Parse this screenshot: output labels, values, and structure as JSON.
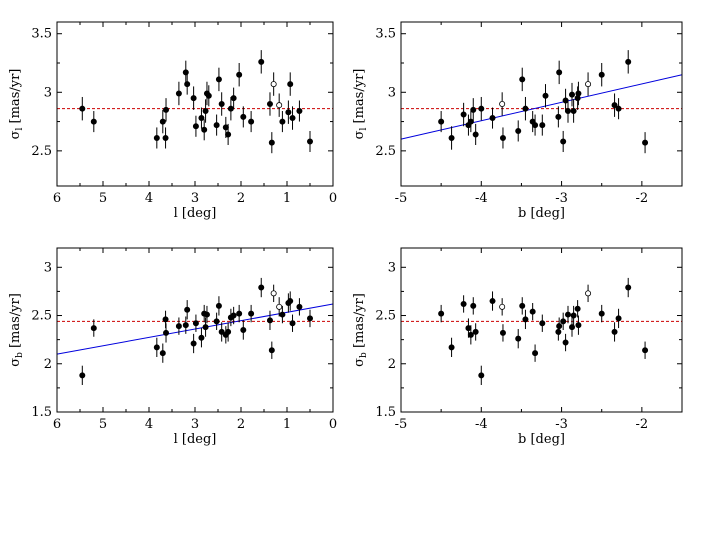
{
  "figure": {
    "colors": {
      "mean_line": "#cc0000",
      "fit_line": "#0000dd",
      "points": "#000000"
    }
  },
  "chart_data": [
    {
      "type": "scatter",
      "panel": "top-left",
      "xlabel": "l [deg]",
      "ylabel_main": "σ",
      "ylabel_sub": "l",
      "ylabel_units": "[mas/yr]",
      "xlim": [
        6,
        0
      ],
      "ylim": [
        2.2,
        3.6
      ],
      "xticks": [
        6,
        5,
        4,
        3,
        2,
        1,
        0
      ],
      "yticks": [
        2.5,
        3,
        3.5
      ],
      "xtick_labels": [
        "6",
        "5",
        "4",
        "3",
        "2",
        "1",
        "0"
      ],
      "ytick_labels": [
        "2.5",
        "3",
        "3.5"
      ],
      "mean_line": 2.86,
      "fit": null,
      "points": [
        {
          "x": 5.45,
          "y": 2.86,
          "err": 0.1
        },
        {
          "x": 5.2,
          "y": 2.75,
          "err": 0.09
        },
        {
          "x": 3.83,
          "y": 2.61,
          "err": 0.09
        },
        {
          "x": 3.7,
          "y": 2.75,
          "err": 0.1
        },
        {
          "x": 3.64,
          "y": 2.61,
          "err": 0.09
        },
        {
          "x": 3.63,
          "y": 2.85,
          "err": 0.1
        },
        {
          "x": 3.35,
          "y": 2.99,
          "err": 0.1
        },
        {
          "x": 3.2,
          "y": 3.17,
          "err": 0.1
        },
        {
          "x": 3.17,
          "y": 3.07,
          "err": 0.09
        },
        {
          "x": 3.03,
          "y": 2.95,
          "err": 0.1
        },
        {
          "x": 2.98,
          "y": 2.71,
          "err": 0.09
        },
        {
          "x": 2.86,
          "y": 2.78,
          "err": 0.09
        },
        {
          "x": 2.8,
          "y": 2.68,
          "err": 0.09
        },
        {
          "x": 2.77,
          "y": 2.84,
          "err": 0.1
        },
        {
          "x": 2.74,
          "y": 2.99,
          "err": 0.1
        },
        {
          "x": 2.7,
          "y": 2.97,
          "err": 0.09
        },
        {
          "x": 2.53,
          "y": 2.72,
          "err": 0.09
        },
        {
          "x": 2.48,
          "y": 3.11,
          "err": 0.1
        },
        {
          "x": 2.42,
          "y": 2.9,
          "err": 0.1
        },
        {
          "x": 2.33,
          "y": 2.7,
          "err": 0.09
        },
        {
          "x": 2.28,
          "y": 2.64,
          "err": 0.09
        },
        {
          "x": 2.22,
          "y": 2.86,
          "err": 0.1
        },
        {
          "x": 2.16,
          "y": 2.95,
          "err": 0.09
        },
        {
          "x": 2.04,
          "y": 3.15,
          "err": 0.1
        },
        {
          "x": 1.95,
          "y": 2.79,
          "err": 0.09
        },
        {
          "x": 1.78,
          "y": 2.75,
          "err": 0.09
        },
        {
          "x": 1.56,
          "y": 3.26,
          "err": 0.1
        },
        {
          "x": 1.37,
          "y": 2.9,
          "err": 0.1
        },
        {
          "x": 1.33,
          "y": 2.57,
          "err": 0.09
        },
        {
          "x": 1.29,
          "y": 3.07,
          "err": 0.1,
          "open": true
        },
        {
          "x": 1.17,
          "y": 2.89,
          "err": 0.1,
          "open": true
        },
        {
          "x": 1.1,
          "y": 2.75,
          "err": 0.09
        },
        {
          "x": 0.97,
          "y": 2.83,
          "err": 0.1
        },
        {
          "x": 0.93,
          "y": 3.07,
          "err": 0.1
        },
        {
          "x": 0.88,
          "y": 2.78,
          "err": 0.1
        },
        {
          "x": 0.73,
          "y": 2.84,
          "err": 0.09
        },
        {
          "x": 0.5,
          "y": 2.58,
          "err": 0.09
        }
      ]
    },
    {
      "type": "scatter",
      "panel": "top-right",
      "xlabel": "b [deg]",
      "ylabel_main": "σ",
      "ylabel_sub": "l",
      "ylabel_units": "[mas/yr]",
      "xlim": [
        -5,
        -1.5
      ],
      "ylim": [
        2.2,
        3.6
      ],
      "xticks": [
        -5,
        -4,
        -3,
        -2
      ],
      "yticks": [
        2.5,
        3,
        3.5
      ],
      "xtick_labels": [
        "-5",
        "-4",
        "-3",
        "-2"
      ],
      "ytick_labels": [
        "2.5",
        "3",
        "3.5"
      ],
      "mean_line": 2.86,
      "fit": {
        "x0": -5,
        "y0": 2.6,
        "x1": -1.5,
        "y1": 3.15
      },
      "points": [
        {
          "x": -4.5,
          "y": 2.75,
          "err": 0.09
        },
        {
          "x": -4.37,
          "y": 2.61,
          "err": 0.1
        },
        {
          "x": -4.22,
          "y": 2.81,
          "err": 0.1
        },
        {
          "x": -4.16,
          "y": 2.72,
          "err": 0.09
        },
        {
          "x": -4.13,
          "y": 2.75,
          "err": 0.09
        },
        {
          "x": -4.1,
          "y": 2.85,
          "err": 0.1
        },
        {
          "x": -4.07,
          "y": 2.64,
          "err": 0.09
        },
        {
          "x": -4.0,
          "y": 2.86,
          "err": 0.1
        },
        {
          "x": -3.86,
          "y": 2.78,
          "err": 0.09
        },
        {
          "x": -3.74,
          "y": 2.9,
          "err": 0.1,
          "open": true
        },
        {
          "x": -3.73,
          "y": 2.61,
          "err": 0.09
        },
        {
          "x": -3.54,
          "y": 2.67,
          "err": 0.09
        },
        {
          "x": -3.49,
          "y": 3.11,
          "err": 0.1
        },
        {
          "x": -3.45,
          "y": 2.86,
          "err": 0.1
        },
        {
          "x": -3.36,
          "y": 2.75,
          "err": 0.09
        },
        {
          "x": -3.33,
          "y": 2.72,
          "err": 0.09
        },
        {
          "x": -3.24,
          "y": 2.72,
          "err": 0.09
        },
        {
          "x": -3.2,
          "y": 2.97,
          "err": 0.1
        },
        {
          "x": -3.03,
          "y": 3.17,
          "err": 0.1
        },
        {
          "x": -3.04,
          "y": 2.79,
          "err": 0.09
        },
        {
          "x": -2.98,
          "y": 2.58,
          "err": 0.09
        },
        {
          "x": -2.95,
          "y": 2.93,
          "err": 0.1
        },
        {
          "x": -2.92,
          "y": 2.84,
          "err": 0.1
        },
        {
          "x": -2.87,
          "y": 2.98,
          "err": 0.1
        },
        {
          "x": -2.85,
          "y": 2.84,
          "err": 0.1
        },
        {
          "x": -2.8,
          "y": 2.95,
          "err": 0.1
        },
        {
          "x": -2.79,
          "y": 2.99,
          "err": 0.1
        },
        {
          "x": -2.67,
          "y": 3.07,
          "err": 0.1,
          "open": true
        },
        {
          "x": -2.5,
          "y": 3.15,
          "err": 0.1
        },
        {
          "x": -2.34,
          "y": 2.89,
          "err": 0.1
        },
        {
          "x": -2.29,
          "y": 2.86,
          "err": 0.09
        },
        {
          "x": -2.17,
          "y": 3.26,
          "err": 0.1
        },
        {
          "x": -1.96,
          "y": 2.57,
          "err": 0.09
        }
      ]
    },
    {
      "type": "scatter",
      "panel": "bottom-left",
      "xlabel": "l [deg]",
      "ylabel_main": "σ",
      "ylabel_sub": "b",
      "ylabel_units": "[mas/yr]",
      "xlim": [
        6,
        0
      ],
      "ylim": [
        1.5,
        3.2
      ],
      "xticks": [
        6,
        5,
        4,
        3,
        2,
        1,
        0
      ],
      "yticks": [
        1.5,
        2,
        2.5,
        3
      ],
      "xtick_labels": [
        "6",
        "5",
        "4",
        "3",
        "2",
        "1",
        "0"
      ],
      "ytick_labels": [
        "1.5",
        "2",
        "2.5",
        "3"
      ],
      "mean_line": 2.44,
      "fit": {
        "x0": 6,
        "y0": 2.1,
        "x1": 0,
        "y1": 2.62
      },
      "points": [
        {
          "x": 5.45,
          "y": 1.88,
          "err": 0.1
        },
        {
          "x": 5.2,
          "y": 2.37,
          "err": 0.09
        },
        {
          "x": 3.83,
          "y": 2.17,
          "err": 0.1
        },
        {
          "x": 3.7,
          "y": 2.11,
          "err": 0.1
        },
        {
          "x": 3.64,
          "y": 2.46,
          "err": 0.09
        },
        {
          "x": 3.63,
          "y": 2.32,
          "err": 0.1
        },
        {
          "x": 3.35,
          "y": 2.39,
          "err": 0.09
        },
        {
          "x": 3.2,
          "y": 2.4,
          "err": 0.09
        },
        {
          "x": 3.17,
          "y": 2.56,
          "err": 0.1
        },
        {
          "x": 3.03,
          "y": 2.21,
          "err": 0.1
        },
        {
          "x": 2.98,
          "y": 2.42,
          "err": 0.09
        },
        {
          "x": 2.86,
          "y": 2.27,
          "err": 0.1
        },
        {
          "x": 2.8,
          "y": 2.52,
          "err": 0.09
        },
        {
          "x": 2.77,
          "y": 2.38,
          "err": 0.1
        },
        {
          "x": 2.74,
          "y": 2.51,
          "err": 0.09
        },
        {
          "x": 2.53,
          "y": 2.44,
          "err": 0.09
        },
        {
          "x": 2.48,
          "y": 2.6,
          "err": 0.1
        },
        {
          "x": 2.42,
          "y": 2.33,
          "err": 0.1
        },
        {
          "x": 2.33,
          "y": 2.3,
          "err": 0.09
        },
        {
          "x": 2.28,
          "y": 2.33,
          "err": 0.1
        },
        {
          "x": 2.22,
          "y": 2.48,
          "err": 0.09
        },
        {
          "x": 2.16,
          "y": 2.5,
          "err": 0.09
        },
        {
          "x": 2.04,
          "y": 2.52,
          "err": 0.09
        },
        {
          "x": 1.95,
          "y": 2.35,
          "err": 0.1
        },
        {
          "x": 1.78,
          "y": 2.52,
          "err": 0.09
        },
        {
          "x": 1.56,
          "y": 2.79,
          "err": 0.1
        },
        {
          "x": 1.37,
          "y": 2.45,
          "err": 0.1
        },
        {
          "x": 1.33,
          "y": 2.14,
          "err": 0.09
        },
        {
          "x": 1.29,
          "y": 2.73,
          "err": 0.09,
          "open": true
        },
        {
          "x": 1.17,
          "y": 2.59,
          "err": 0.1,
          "open": true
        },
        {
          "x": 1.1,
          "y": 2.51,
          "err": 0.09
        },
        {
          "x": 0.97,
          "y": 2.63,
          "err": 0.1
        },
        {
          "x": 0.93,
          "y": 2.65,
          "err": 0.1
        },
        {
          "x": 0.88,
          "y": 2.42,
          "err": 0.09
        },
        {
          "x": 0.73,
          "y": 2.59,
          "err": 0.09
        },
        {
          "x": 0.5,
          "y": 2.47,
          "err": 0.09
        }
      ]
    },
    {
      "type": "scatter",
      "panel": "bottom-right",
      "xlabel": "b [deg]",
      "ylabel_main": "σ",
      "ylabel_sub": "b",
      "ylabel_units": "[mas/yr]",
      "xlim": [
        -5,
        -1.5
      ],
      "ylim": [
        1.5,
        3.2
      ],
      "xticks": [
        -5,
        -4,
        -3,
        -2
      ],
      "yticks": [
        1.5,
        2,
        2.5,
        3
      ],
      "xtick_labels": [
        "-5",
        "-4",
        "-3",
        "-2"
      ],
      "ytick_labels": [
        "1.5",
        "2",
        "2.5",
        "3"
      ],
      "mean_line": 2.44,
      "fit": null,
      "points": [
        {
          "x": -4.5,
          "y": 2.52,
          "err": 0.09
        },
        {
          "x": -4.37,
          "y": 2.17,
          "err": 0.1
        },
        {
          "x": -4.22,
          "y": 2.62,
          "err": 0.09
        },
        {
          "x": -4.16,
          "y": 2.37,
          "err": 0.1
        },
        {
          "x": -4.13,
          "y": 2.3,
          "err": 0.1
        },
        {
          "x": -4.1,
          "y": 2.6,
          "err": 0.09
        },
        {
          "x": -4.07,
          "y": 2.33,
          "err": 0.09
        },
        {
          "x": -4.0,
          "y": 1.88,
          "err": 0.1
        },
        {
          "x": -3.86,
          "y": 2.65,
          "err": 0.1
        },
        {
          "x": -3.74,
          "y": 2.59,
          "err": 0.09,
          "open": true
        },
        {
          "x": -3.73,
          "y": 2.32,
          "err": 0.09
        },
        {
          "x": -3.54,
          "y": 2.26,
          "err": 0.1
        },
        {
          "x": -3.49,
          "y": 2.6,
          "err": 0.09
        },
        {
          "x": -3.45,
          "y": 2.46,
          "err": 0.1
        },
        {
          "x": -3.36,
          "y": 2.54,
          "err": 0.09
        },
        {
          "x": -3.33,
          "y": 2.11,
          "err": 0.09
        },
        {
          "x": -3.24,
          "y": 2.42,
          "err": 0.09
        },
        {
          "x": -3.03,
          "y": 2.39,
          "err": 0.09
        },
        {
          "x": -3.04,
          "y": 2.33,
          "err": 0.09
        },
        {
          "x": -2.98,
          "y": 2.44,
          "err": 0.09
        },
        {
          "x": -2.95,
          "y": 2.22,
          "err": 0.09
        },
        {
          "x": -2.92,
          "y": 2.51,
          "err": 0.09
        },
        {
          "x": -2.87,
          "y": 2.38,
          "err": 0.1
        },
        {
          "x": -2.85,
          "y": 2.5,
          "err": 0.1
        },
        {
          "x": -2.8,
          "y": 2.57,
          "err": 0.09
        },
        {
          "x": -2.79,
          "y": 2.4,
          "err": 0.1
        },
        {
          "x": -2.67,
          "y": 2.73,
          "err": 0.09,
          "open": true
        },
        {
          "x": -2.5,
          "y": 2.52,
          "err": 0.09
        },
        {
          "x": -2.34,
          "y": 2.33,
          "err": 0.1
        },
        {
          "x": -2.29,
          "y": 2.47,
          "err": 0.1
        },
        {
          "x": -2.17,
          "y": 2.79,
          "err": 0.1
        },
        {
          "x": -1.96,
          "y": 2.14,
          "err": 0.09
        }
      ]
    }
  ]
}
